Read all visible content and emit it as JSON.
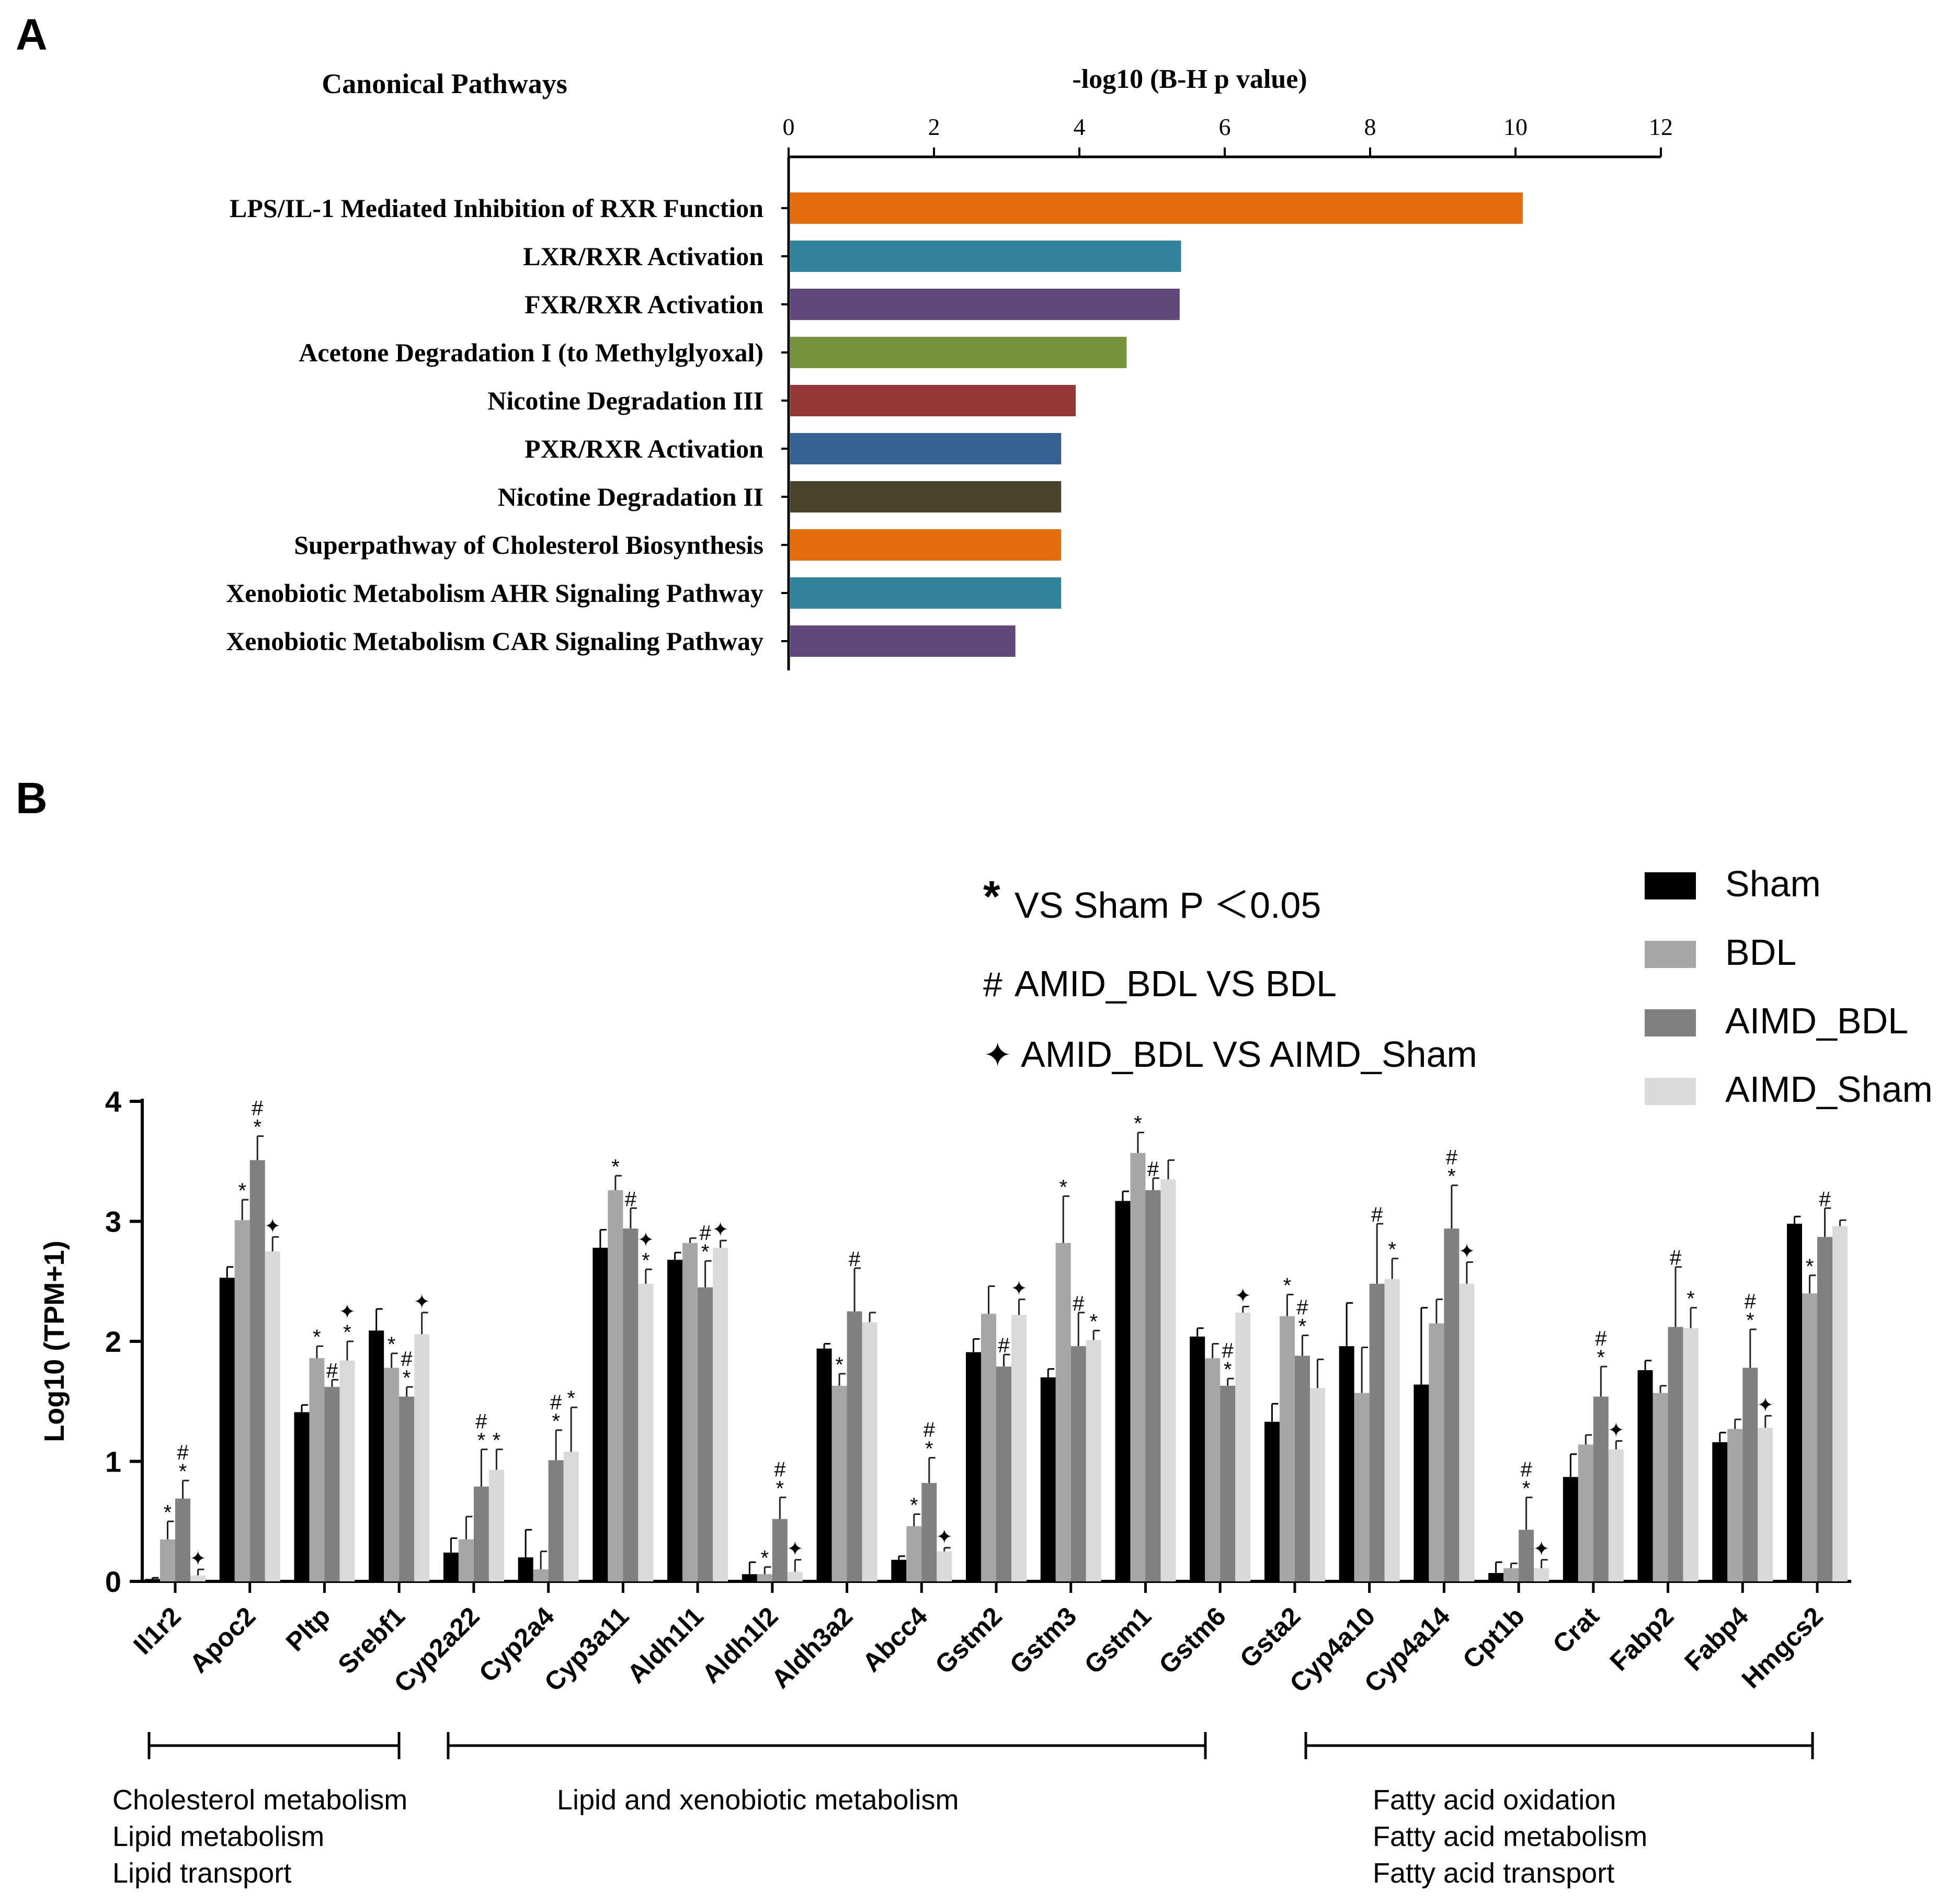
{
  "panels": {
    "a_label": "A",
    "b_label": "B"
  },
  "chart_data": [
    {
      "type": "bar",
      "orientation": "horizontal",
      "title": "Canonical Pathways",
      "xlabel": "-log10 (B-H p value)",
      "x_axis_position": "top",
      "xlim": [
        0,
        12
      ],
      "xticks": [
        0,
        2,
        4,
        6,
        8,
        10,
        12
      ],
      "categories": [
        "LPS/IL-1 Mediated Inhibition of RXR Function",
        "LXR/RXR Activation",
        "FXR/RXR Activation",
        "Acetone Degradation I (to Methylglyoxal)",
        "Nicotine Degradation III",
        "PXR/RXR Activation",
        "Nicotine Degradation II",
        "Superpathway of Cholesterol Biosynthesis",
        "Xenobiotic Metabolism AHR Signaling Pathway",
        "Xenobiotic Metabolism CAR Signaling Pathway"
      ],
      "values": [
        10.1,
        5.4,
        5.38,
        4.65,
        3.95,
        3.75,
        3.75,
        3.75,
        3.75,
        3.12
      ],
      "colors": [
        "#e46c0a",
        "#31849b",
        "#60497a",
        "#77933c",
        "#953735",
        "#376092",
        "#4a452a",
        "#e46c0a",
        "#31849b",
        "#60497a"
      ]
    },
    {
      "type": "bar",
      "orientation": "vertical",
      "ylabel": "Log10 (TPM+1)",
      "ylim": [
        0,
        4
      ],
      "yticks": [
        0,
        1,
        2,
        3,
        4
      ],
      "categories": [
        "Il1r2",
        "Apoc2",
        "Pltp",
        "Srebf1",
        "Cyp2a22",
        "Cyp2a4",
        "Cyp3a11",
        "Aldh1l1",
        "Aldh1l2",
        "Aldh3a2",
        "Abcc4",
        "Gstm2",
        "Gstm3",
        "Gstm1",
        "Gstm6",
        "Gsta2",
        "Cyp4a10",
        "Cyp4a14",
        "Cpt1b",
        "Crat",
        "Fabp2",
        "Fabp4",
        "Hmgcs2"
      ],
      "series": [
        {
          "name": "Sham",
          "color": "#000000",
          "values": [
            0.02,
            2.53,
            1.41,
            2.09,
            0.24,
            0.2,
            2.78,
            2.68,
            0.06,
            1.94,
            0.18,
            1.91,
            1.7,
            3.17,
            2.04,
            1.33,
            1.96,
            1.64,
            0.07,
            0.87,
            1.76,
            1.16,
            2.98
          ],
          "errors": [
            0.01,
            0.09,
            0.06,
            0.18,
            0.12,
            0.23,
            0.15,
            0.06,
            0.1,
            0.04,
            0.03,
            0.11,
            0.07,
            0.08,
            0.07,
            0.15,
            0.36,
            0.64,
            0.09,
            0.19,
            0.08,
            0.08,
            0.06
          ],
          "marks": [
            "",
            "",
            "",
            "",
            "",
            "",
            "",
            "",
            "",
            "",
            "",
            "",
            "",
            "",
            "",
            "",
            "",
            "",
            "",
            "",
            "",
            "",
            ""
          ]
        },
        {
          "name": "BDL",
          "color": "#a6a6a6",
          "values": [
            0.35,
            3.01,
            1.86,
            1.78,
            0.35,
            0.1,
            3.26,
            2.82,
            0.06,
            1.63,
            0.46,
            2.23,
            2.82,
            3.57,
            1.86,
            2.21,
            1.57,
            2.15,
            0.11,
            1.14,
            1.57,
            1.27,
            2.4
          ],
          "errors": [
            0.15,
            0.17,
            0.1,
            0.12,
            0.19,
            0.15,
            0.12,
            0.04,
            0.06,
            0.1,
            0.1,
            0.23,
            0.39,
            0.17,
            0.12,
            0.18,
            0.38,
            0.2,
            0.04,
            0.08,
            0.06,
            0.08,
            0.15
          ],
          "marks": [
            "*",
            "*",
            "*",
            "*",
            "",
            "",
            "*",
            "",
            "*",
            "*",
            "*",
            "",
            "*",
            "*",
            "",
            "*",
            "",
            "",
            "",
            "",
            "",
            "",
            "*"
          ]
        },
        {
          "name": "AIMD_BDL",
          "color": "#808080",
          "values": [
            0.69,
            3.51,
            1.62,
            1.54,
            0.79,
            1.01,
            2.94,
            2.45,
            0.52,
            2.25,
            0.82,
            1.79,
            1.96,
            3.26,
            1.63,
            1.88,
            2.48,
            2.94,
            0.43,
            1.54,
            2.12,
            1.78,
            2.87
          ],
          "errors": [
            0.15,
            0.2,
            0.06,
            0.08,
            0.31,
            0.25,
            0.17,
            0.22,
            0.18,
            0.36,
            0.21,
            0.1,
            0.28,
            0.1,
            0.06,
            0.17,
            0.5,
            0.36,
            0.27,
            0.25,
            0.5,
            0.32,
            0.24
          ],
          "marks": [
            "#\n*",
            "#\n*",
            "#",
            "#\n*",
            "#\n*",
            "#\n*",
            "#",
            "#\n*",
            "#\n*",
            "#",
            "#\n*",
            "#",
            "#",
            "#",
            "#\n*",
            "#\n*",
            "#",
            "#\n*",
            "#\n*",
            "#\n*",
            "#",
            "#\n*",
            "#"
          ]
        },
        {
          "name": "AIMD_Sham",
          "color": "#d9d9d9",
          "values": [
            0.05,
            2.75,
            1.84,
            2.06,
            0.93,
            1.08,
            2.48,
            2.78,
            0.08,
            2.16,
            0.25,
            2.22,
            2.01,
            3.35,
            2.24,
            1.61,
            2.52,
            2.48,
            0.11,
            1.1,
            2.11,
            1.28,
            2.96
          ],
          "errors": [
            0.05,
            0.12,
            0.16,
            0.18,
            0.17,
            0.37,
            0.12,
            0.06,
            0.1,
            0.08,
            0.03,
            0.13,
            0.08,
            0.16,
            0.05,
            0.24,
            0.17,
            0.18,
            0.07,
            0.07,
            0.17,
            0.1,
            0.05
          ],
          "marks": [
            "✦",
            "✦",
            "✦\n*",
            "✦",
            "*",
            "*",
            "✦\n*",
            "✦",
            "✦",
            "",
            "✦",
            "✦",
            "*",
            "",
            "✦",
            "",
            "*",
            "✦",
            "✦",
            "✦",
            "*",
            "✦",
            ""
          ]
        }
      ],
      "legend_position": "top-right",
      "significance_notes": [
        {
          "symbol": "*",
          "text": "VS Sham P ＜0.05"
        },
        {
          "symbol": "#",
          "text": "AMID_BDL VS BDL"
        },
        {
          "symbol": "✦",
          "text": "AMID_BDL VS AIMD_Sham"
        }
      ],
      "groups": [
        {
          "first": "Il1r2",
          "last": "Srebf1",
          "labels": [
            "Cholesterol metabolism",
            "Lipid metabolism",
            "Lipid transport"
          ]
        },
        {
          "first": "Cyp2a22",
          "last": "Gstm6",
          "labels": [
            "Lipid and xenobiotic metabolism"
          ]
        },
        {
          "first": "Gsta2",
          "last": "Hmgcs2",
          "labels": [
            "Fatty acid oxidation",
            "Fatty acid metabolism",
            "Fatty acid transport"
          ]
        }
      ]
    }
  ]
}
